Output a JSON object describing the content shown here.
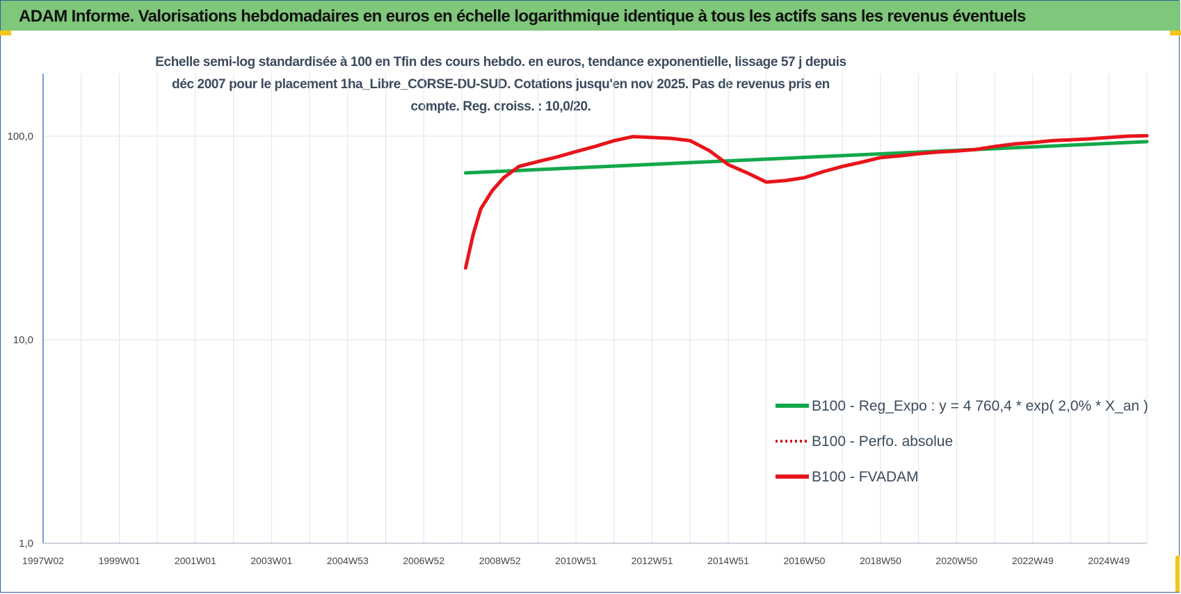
{
  "header": {
    "title": "ADAM Informe. Valorisations hebdomadaires en euros en échelle logarithmique identique à tous les actifs sans les revenus éventuels"
  },
  "colors": {
    "header_bg": "#7fc77a",
    "regression": "#12a84a",
    "fvadam": "#e8141b",
    "perfo": "#d0141b",
    "corner": "#f5c518"
  },
  "chart_data": {
    "type": "line",
    "title": "Echelle semi-log standardisée à 100 en Tfin des cours hebdo. en euros, tendance exponentielle, lissage 57 j depuis déc 2007 pour le placement 1ha_Libre_CORSE-DU-SUD. Cotations jusqu'en nov 2025. Pas de revenus pris en compte. Reg. croiss. : 10,0/20.",
    "xlabel": "",
    "ylabel": "",
    "y_scale": "log",
    "ylim": [
      1,
      200
    ],
    "xlim": [
      1997.0,
      2026.0
    ],
    "grid": true,
    "legend_position": "bottom-right",
    "y_ticks": [
      {
        "value": 1,
        "label": "1,0"
      },
      {
        "value": 10,
        "label": "10,0"
      },
      {
        "value": 100,
        "label": "100,0"
      }
    ],
    "x_ticks": [
      {
        "value": 1997.0,
        "label": "1997W02"
      },
      {
        "value": 1999.0,
        "label": "1999W01"
      },
      {
        "value": 2001.0,
        "label": "2001W01"
      },
      {
        "value": 2003.0,
        "label": "2003W01"
      },
      {
        "value": 2005.0,
        "label": "2004W53"
      },
      {
        "value": 2007.0,
        "label": "2006W52"
      },
      {
        "value": 2009.0,
        "label": "2008W52"
      },
      {
        "value": 2011.0,
        "label": "2010W51"
      },
      {
        "value": 2013.0,
        "label": "2012W51"
      },
      {
        "value": 2015.0,
        "label": "2014W51"
      },
      {
        "value": 2017.0,
        "label": "2016W50"
      },
      {
        "value": 2019.0,
        "label": "2018W50"
      },
      {
        "value": 2021.0,
        "label": "2020W50"
      },
      {
        "value": 2023.0,
        "label": "2022W49"
      },
      {
        "value": 2025.0,
        "label": "2024W49"
      }
    ],
    "series": [
      {
        "name": "B100 - Reg_Expo : y = 4 760,4 * exp( 2,0% *  X_an )",
        "style": "solid-thick",
        "color": "#12a84a",
        "x": [
          2008.1,
          2026.0
        ],
        "y": [
          66.0,
          94.0
        ]
      },
      {
        "name": "B100 - Perfo. absolue",
        "style": "dotted",
        "color": "#d0141b",
        "x": [],
        "y": []
      },
      {
        "name": "B100 - FVADAM",
        "style": "solid-thick",
        "color": "#e8141b",
        "x": [
          2008.1,
          2008.3,
          2008.5,
          2008.8,
          2009.1,
          2009.5,
          2010.0,
          2010.5,
          2011.0,
          2011.5,
          2012.0,
          2012.5,
          2013.0,
          2013.5,
          2014.0,
          2014.5,
          2015.0,
          2015.5,
          2016.0,
          2016.5,
          2017.0,
          2017.5,
          2018.0,
          2018.5,
          2019.0,
          2019.5,
          2020.0,
          2020.5,
          2021.0,
          2021.5,
          2022.0,
          2022.5,
          2023.0,
          2023.5,
          2024.0,
          2024.5,
          2025.0,
          2025.5,
          2026.0
        ],
        "y": [
          22.5,
          33.0,
          44.0,
          54.0,
          62.5,
          71.0,
          75.0,
          79.0,
          84.0,
          89.0,
          95.0,
          99.5,
          98.5,
          97.5,
          95.0,
          85.0,
          72.5,
          66.0,
          59.5,
          60.5,
          62.5,
          67.0,
          71.0,
          74.5,
          78.5,
          80.0,
          82.0,
          83.5,
          84.5,
          86.0,
          89.0,
          91.5,
          93.0,
          95.0,
          96.0,
          97.0,
          98.5,
          100.0,
          100.5
        ]
      }
    ]
  }
}
